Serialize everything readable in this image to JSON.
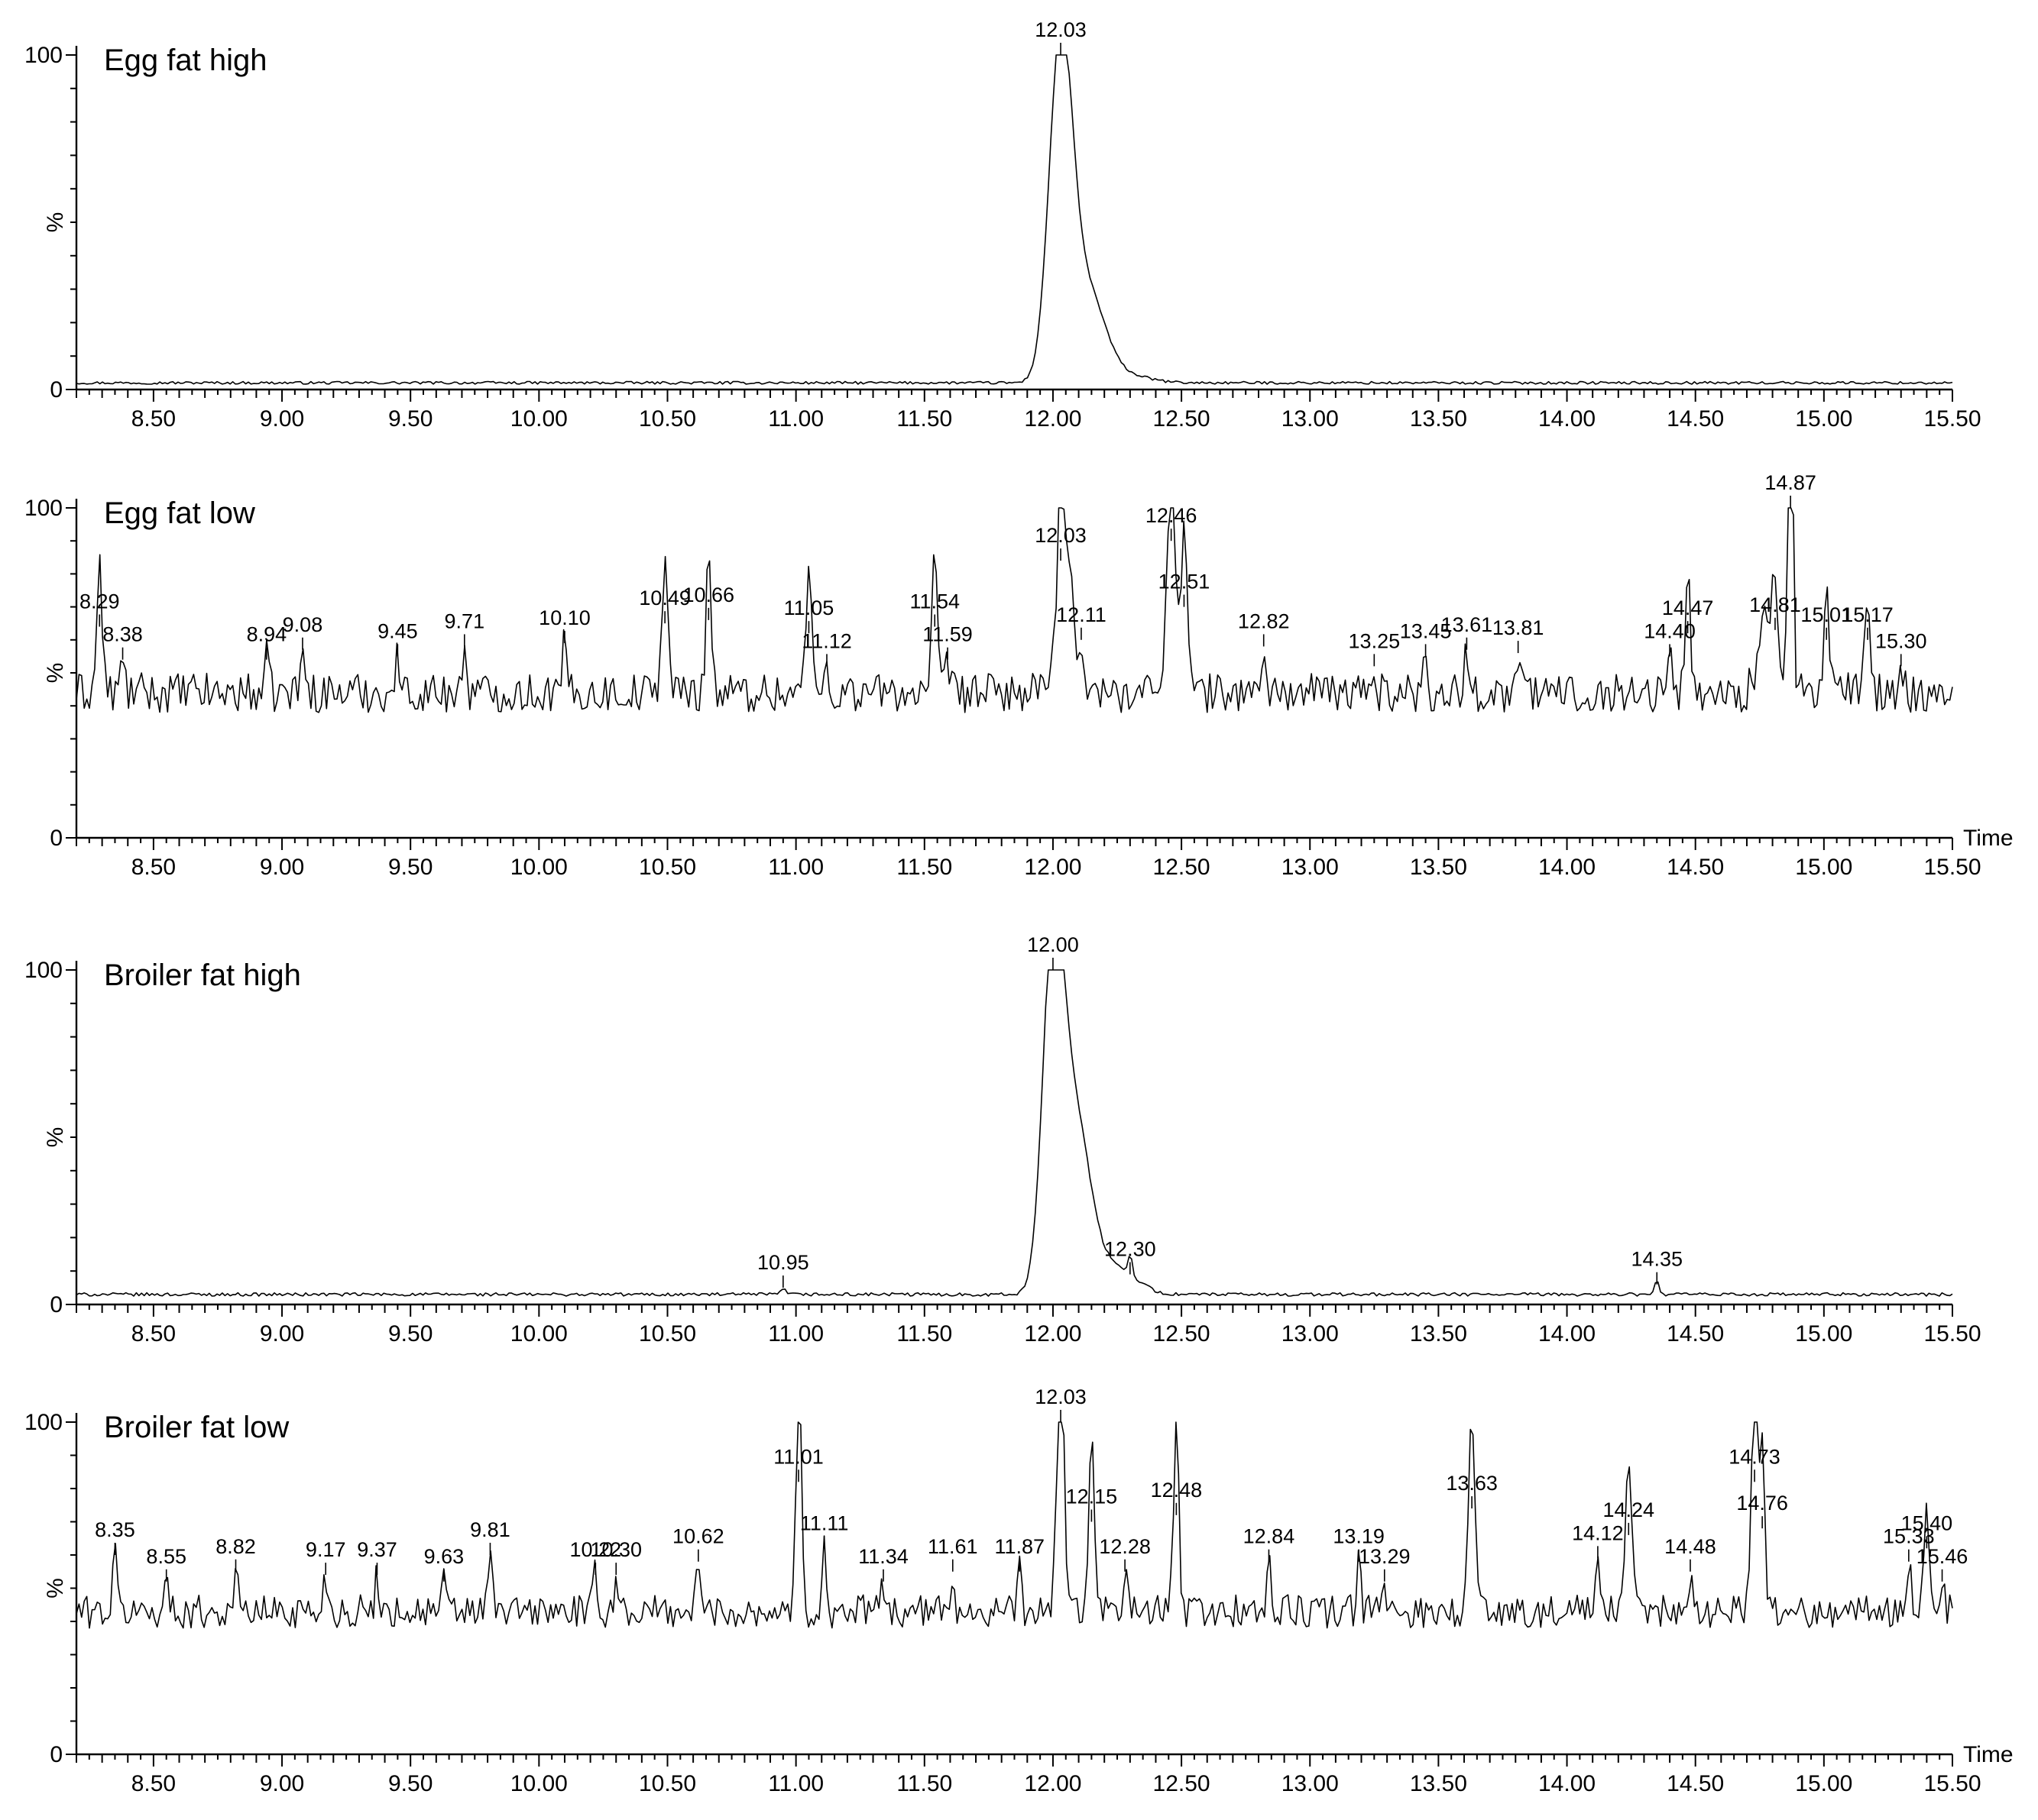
{
  "chart_data": [
    {
      "type": "line",
      "title": "Egg fat high",
      "ylabel": "%",
      "xlabel": "",
      "xlim": [
        8.2,
        15.5
      ],
      "ylim": [
        0,
        100
      ],
      "y_ticks": [
        "0",
        "100"
      ],
      "x_ticks": [
        "8.50",
        "9.00",
        "9.50",
        "10.00",
        "10.50",
        "11.00",
        "11.50",
        "12.00",
        "12.50",
        "13.00",
        "13.50",
        "14.00",
        "14.50",
        "15.00",
        "15.50"
      ],
      "baseline": 2,
      "noise": 0.4,
      "peaks": [
        {
          "x": 12.03,
          "y": 100,
          "w": 0.045
        },
        {
          "x": 12.13,
          "y": 30,
          "w": 0.07
        },
        {
          "x": 12.3,
          "y": 4,
          "w": 0.08
        },
        {
          "x": 11.65,
          "y": 2,
          "w": 0.03
        },
        {
          "x": 14.75,
          "y": 2,
          "w": 0.04
        }
      ],
      "peak_labels": [
        {
          "x": 12.03,
          "y": 100,
          "label": "12.03"
        }
      ]
    },
    {
      "type": "line",
      "title": "Egg fat low",
      "ylabel": "%",
      "xlabel": "Time",
      "xlim": [
        8.2,
        15.5
      ],
      "ylim": [
        0,
        100
      ],
      "y_ticks": [
        "0",
        "100"
      ],
      "x_ticks": [
        "8.50",
        "9.00",
        "9.50",
        "10.00",
        "10.50",
        "11.00",
        "11.50",
        "12.00",
        "12.50",
        "13.00",
        "13.50",
        "14.00",
        "14.50",
        "15.00",
        "15.50"
      ],
      "baseline": 44,
      "noise": 6,
      "peaks": [
        {
          "x": 8.29,
          "y": 64,
          "w": 0.012
        },
        {
          "x": 10.49,
          "y": 65,
          "w": 0.015
        },
        {
          "x": 10.66,
          "y": 66,
          "w": 0.012
        },
        {
          "x": 11.05,
          "y": 62,
          "w": 0.015
        },
        {
          "x": 11.54,
          "y": 64,
          "w": 0.012
        },
        {
          "x": 12.03,
          "y": 84,
          "w": 0.02
        },
        {
          "x": 12.07,
          "y": 80,
          "w": 0.015
        },
        {
          "x": 12.46,
          "y": 90,
          "w": 0.02
        },
        {
          "x": 12.51,
          "y": 70,
          "w": 0.015
        },
        {
          "x": 14.47,
          "y": 62,
          "w": 0.012
        },
        {
          "x": 14.78,
          "y": 70,
          "w": 0.03
        },
        {
          "x": 14.87,
          "y": 100,
          "w": 0.01
        },
        {
          "x": 15.01,
          "y": 60,
          "w": 0.012
        },
        {
          "x": 15.17,
          "y": 60,
          "w": 0.012
        }
      ],
      "peak_labels": [
        {
          "x": 8.29,
          "y": 64,
          "label": "8.29"
        },
        {
          "x": 8.38,
          "y": 54,
          "label": "8.38"
        },
        {
          "x": 8.94,
          "y": 54,
          "label": "8.94"
        },
        {
          "x": 9.08,
          "y": 57,
          "label": "9.08"
        },
        {
          "x": 9.45,
          "y": 55,
          "label": "9.45"
        },
        {
          "x": 9.71,
          "y": 58,
          "label": "9.71"
        },
        {
          "x": 10.1,
          "y": 59,
          "label": "10.10"
        },
        {
          "x": 10.49,
          "y": 65,
          "label": "10.49"
        },
        {
          "x": 10.66,
          "y": 66,
          "label": "10.66"
        },
        {
          "x": 11.05,
          "y": 62,
          "label": "11.05"
        },
        {
          "x": 11.12,
          "y": 52,
          "label": "11.12"
        },
        {
          "x": 11.54,
          "y": 64,
          "label": "11.54"
        },
        {
          "x": 11.59,
          "y": 54,
          "label": "11.59"
        },
        {
          "x": 12.03,
          "y": 84,
          "label": "12.03"
        },
        {
          "x": 12.11,
          "y": 60,
          "label": "12.11"
        },
        {
          "x": 12.46,
          "y": 90,
          "label": "12.46"
        },
        {
          "x": 12.51,
          "y": 70,
          "label": "12.51"
        },
        {
          "x": 12.82,
          "y": 58,
          "label": "12.82"
        },
        {
          "x": 13.25,
          "y": 52,
          "label": "13.25"
        },
        {
          "x": 13.45,
          "y": 55,
          "label": "13.45"
        },
        {
          "x": 13.61,
          "y": 57,
          "label": "13.61"
        },
        {
          "x": 13.81,
          "y": 56,
          "label": "13.81"
        },
        {
          "x": 14.4,
          "y": 55,
          "label": "14.40"
        },
        {
          "x": 14.47,
          "y": 62,
          "label": "14.47"
        },
        {
          "x": 14.81,
          "y": 63,
          "label": "14.81"
        },
        {
          "x": 14.87,
          "y": 100,
          "label": "14.87"
        },
        {
          "x": 15.01,
          "y": 60,
          "label": "15.01"
        },
        {
          "x": 15.17,
          "y": 60,
          "label": "15.17"
        },
        {
          "x": 15.3,
          "y": 52,
          "label": "15.30"
        }
      ]
    },
    {
      "type": "line",
      "title": "Broiler fat high",
      "ylabel": "%",
      "xlabel": "",
      "xlim": [
        8.2,
        15.5
      ],
      "ylim": [
        0,
        100
      ],
      "y_ticks": [
        "0",
        "100"
      ],
      "x_ticks": [
        "8.50",
        "9.00",
        "9.50",
        "10.00",
        "10.50",
        "11.00",
        "11.50",
        "12.00",
        "12.50",
        "13.00",
        "13.50",
        "14.00",
        "14.50",
        "15.00",
        "15.50"
      ],
      "baseline": 3,
      "noise": 0.5,
      "peaks": [
        {
          "x": 12.0,
          "y": 100,
          "w": 0.04
        },
        {
          "x": 12.08,
          "y": 55,
          "w": 0.06
        },
        {
          "x": 12.2,
          "y": 10,
          "w": 0.08
        },
        {
          "x": 12.3,
          "y": 6,
          "w": 0.06
        },
        {
          "x": 10.95,
          "y": 3,
          "w": 0.02
        },
        {
          "x": 14.35,
          "y": 4,
          "w": 0.008
        }
      ],
      "peak_labels": [
        {
          "x": 10.95,
          "y": 5,
          "label": "10.95"
        },
        {
          "x": 12.0,
          "y": 100,
          "label": "12.00"
        },
        {
          "x": 12.3,
          "y": 9,
          "label": "12.30"
        },
        {
          "x": 14.35,
          "y": 6,
          "label": "14.35"
        }
      ]
    },
    {
      "type": "line",
      "title": "Broiler fat low",
      "ylabel": "%",
      "xlabel": "Time",
      "xlim": [
        8.2,
        15.5
      ],
      "ylim": [
        0,
        100
      ],
      "y_ticks": [
        "0",
        "100"
      ],
      "x_ticks": [
        "8.50",
        "9.00",
        "9.50",
        "10.00",
        "10.50",
        "11.00",
        "11.50",
        "12.00",
        "12.50",
        "13.00",
        "13.50",
        "14.00",
        "14.50",
        "15.00",
        "15.50"
      ],
      "baseline": 43,
      "noise": 5,
      "peaks": [
        {
          "x": 11.01,
          "y": 82,
          "w": 0.012
        },
        {
          "x": 12.03,
          "y": 100,
          "w": 0.015
        },
        {
          "x": 12.15,
          "y": 70,
          "w": 0.012
        },
        {
          "x": 12.48,
          "y": 72,
          "w": 0.012
        },
        {
          "x": 13.63,
          "y": 74,
          "w": 0.015
        },
        {
          "x": 14.24,
          "y": 66,
          "w": 0.015
        },
        {
          "x": 14.73,
          "y": 82,
          "w": 0.015
        },
        {
          "x": 14.76,
          "y": 68,
          "w": 0.012
        },
        {
          "x": 15.4,
          "y": 62,
          "w": 0.01
        }
      ],
      "peak_labels": [
        {
          "x": 8.35,
          "y": 60,
          "label": "8.35"
        },
        {
          "x": 8.55,
          "y": 52,
          "label": "8.55"
        },
        {
          "x": 8.82,
          "y": 55,
          "label": "8.82"
        },
        {
          "x": 9.17,
          "y": 54,
          "label": "9.17"
        },
        {
          "x": 9.37,
          "y": 54,
          "label": "9.37"
        },
        {
          "x": 9.63,
          "y": 52,
          "label": "9.63"
        },
        {
          "x": 9.81,
          "y": 60,
          "label": "9.81"
        },
        {
          "x": 10.22,
          "y": 54,
          "label": "10.22"
        },
        {
          "x": 10.3,
          "y": 54,
          "label": "10.30"
        },
        {
          "x": 10.62,
          "y": 58,
          "label": "10.62"
        },
        {
          "x": 11.01,
          "y": 82,
          "label": "11.01"
        },
        {
          "x": 11.11,
          "y": 62,
          "label": "11.11"
        },
        {
          "x": 11.34,
          "y": 52,
          "label": "11.34"
        },
        {
          "x": 11.61,
          "y": 55,
          "label": "11.61"
        },
        {
          "x": 11.87,
          "y": 55,
          "label": "11.87"
        },
        {
          "x": 12.03,
          "y": 100,
          "label": "12.03"
        },
        {
          "x": 12.15,
          "y": 70,
          "label": "12.15"
        },
        {
          "x": 12.28,
          "y": 55,
          "label": "12.28"
        },
        {
          "x": 12.48,
          "y": 72,
          "label": "12.48"
        },
        {
          "x": 12.84,
          "y": 58,
          "label": "12.84"
        },
        {
          "x": 13.19,
          "y": 58,
          "label": "13.19"
        },
        {
          "x": 13.29,
          "y": 52,
          "label": "13.29"
        },
        {
          "x": 13.63,
          "y": 74,
          "label": "13.63"
        },
        {
          "x": 14.12,
          "y": 59,
          "label": "14.12"
        },
        {
          "x": 14.24,
          "y": 66,
          "label": "14.24"
        },
        {
          "x": 14.48,
          "y": 55,
          "label": "14.48"
        },
        {
          "x": 14.73,
          "y": 82,
          "label": "14.73"
        },
        {
          "x": 14.76,
          "y": 68,
          "label": "14.76"
        },
        {
          "x": 15.33,
          "y": 58,
          "label": "15.33"
        },
        {
          "x": 15.4,
          "y": 62,
          "label": "15.40"
        },
        {
          "x": 15.46,
          "y": 52,
          "label": "15.46"
        }
      ]
    }
  ]
}
